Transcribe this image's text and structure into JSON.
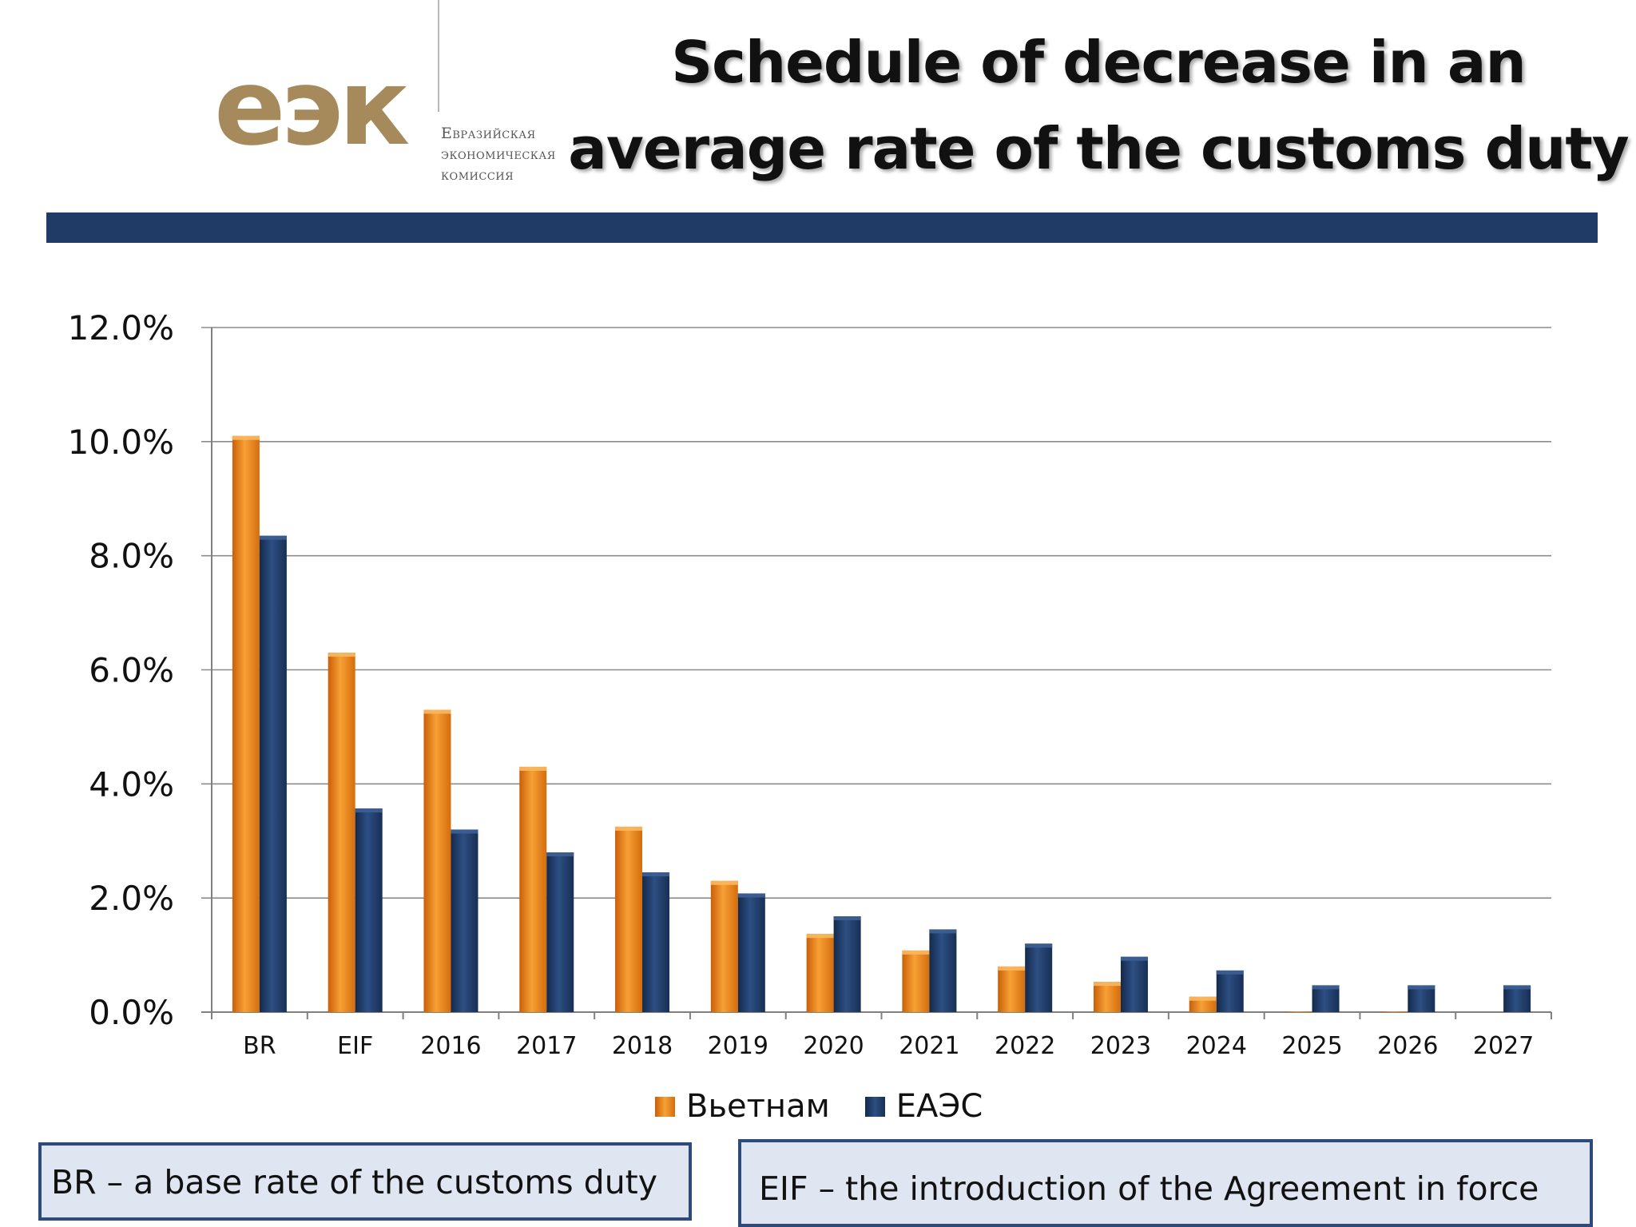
{
  "logo": {
    "mark": "еэк",
    "org_name": "Евразийская\nэкономическая\nкомиссия"
  },
  "title": "Schedule of decrease in an average rate of the customs duty",
  "notes": {
    "br": "BR – a base rate of the customs duty",
    "eif": "EIF – the introduction of the Agreement in force"
  },
  "colors": {
    "header_bar": "#1f3b66",
    "vietnam": "#f28a1a",
    "eaeu": "#1f3b66",
    "note_fill": "#dfe6f1",
    "note_border": "#2c4a7a"
  },
  "chart_data": {
    "type": "bar",
    "title": "Schedule of decrease in an average rate of the customs duty",
    "xlabel": "",
    "ylabel": "",
    "categories": [
      "BR",
      "EIF",
      "2016",
      "2017",
      "2018",
      "2019",
      "2020",
      "2021",
      "2022",
      "2023",
      "2024",
      "2025",
      "2026",
      "2027"
    ],
    "series": [
      {
        "name": "Вьетнам",
        "color": "#f28a1a",
        "values": [
          10.1,
          6.3,
          5.3,
          4.3,
          3.25,
          2.3,
          1.37,
          1.08,
          0.8,
          0.53,
          0.27,
          0.01,
          0.01,
          0.0
        ]
      },
      {
        "name": "ЕАЭС",
        "color": "#1f3b66",
        "values": [
          8.35,
          3.57,
          3.2,
          2.8,
          2.45,
          2.08,
          1.68,
          1.45,
          1.2,
          0.97,
          0.73,
          0.47,
          0.47,
          0.47
        ]
      }
    ],
    "ylim": [
      0,
      12
    ],
    "yticks": [
      0,
      2,
      4,
      6,
      8,
      10,
      12
    ],
    "ytick_labels": [
      "0.0%",
      "2.0%",
      "4.0%",
      "6.0%",
      "8.0%",
      "10.0%",
      "12.0%"
    ],
    "grid": true,
    "legend_position": "bottom"
  }
}
